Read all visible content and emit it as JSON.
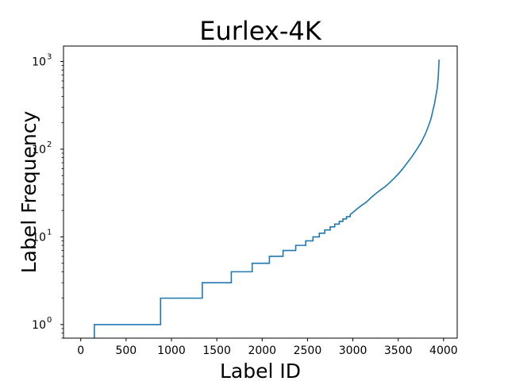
{
  "chart_data": {
    "type": "line",
    "title": "Eurlex-4K",
    "xlabel": "Label ID",
    "ylabel": "Label Frequency",
    "yscale": "log",
    "xlim": [
      -190,
      4150
    ],
    "ylim": [
      0.7,
      1500
    ],
    "xticks": [
      0,
      500,
      1000,
      1500,
      2000,
      2500,
      3000,
      3500,
      4000
    ],
    "yticks": [
      {
        "value": 1,
        "base": "10",
        "exp": "0"
      },
      {
        "value": 10,
        "base": "10",
        "exp": "1"
      },
      {
        "value": 100,
        "base": "10",
        "exp": "2"
      },
      {
        "value": 1000,
        "base": "10",
        "exp": "3"
      }
    ],
    "grid": false,
    "line_color": "#1f77b4",
    "series": [
      {
        "x": [
          150,
          150,
          880,
          880,
          1340,
          1340,
          1660,
          1660,
          1890,
          1890,
          2080,
          2080,
          2230,
          2230,
          2370,
          2370,
          2480,
          2480,
          2560,
          2560,
          2630,
          2630,
          2690,
          2690,
          2750,
          2750,
          2800,
          2800,
          2850,
          2850,
          2890,
          2890,
          2930,
          2930,
          2970,
          2970,
          3000,
          3050,
          3100,
          3150,
          3200,
          3250,
          3300,
          3350,
          3400,
          3450,
          3500,
          3550,
          3600,
          3650,
          3700,
          3750,
          3800,
          3830,
          3860,
          3880,
          3900,
          3910,
          3920,
          3930,
          3935,
          3940,
          3945,
          3950
        ],
        "y": [
          0.7,
          1,
          1,
          2,
          2,
          3,
          3,
          4,
          4,
          5,
          5,
          6,
          6,
          7,
          7,
          8,
          8,
          9,
          9,
          10,
          10,
          11,
          11,
          12,
          12,
          13,
          13,
          14,
          14,
          15,
          15,
          16,
          16,
          17,
          17,
          18,
          19,
          21,
          23,
          25,
          28,
          31,
          34,
          37,
          41,
          46,
          52,
          60,
          70,
          82,
          98,
          118,
          150,
          180,
          220,
          270,
          330,
          380,
          430,
          500,
          560,
          650,
          800,
          1050
        ]
      }
    ]
  }
}
